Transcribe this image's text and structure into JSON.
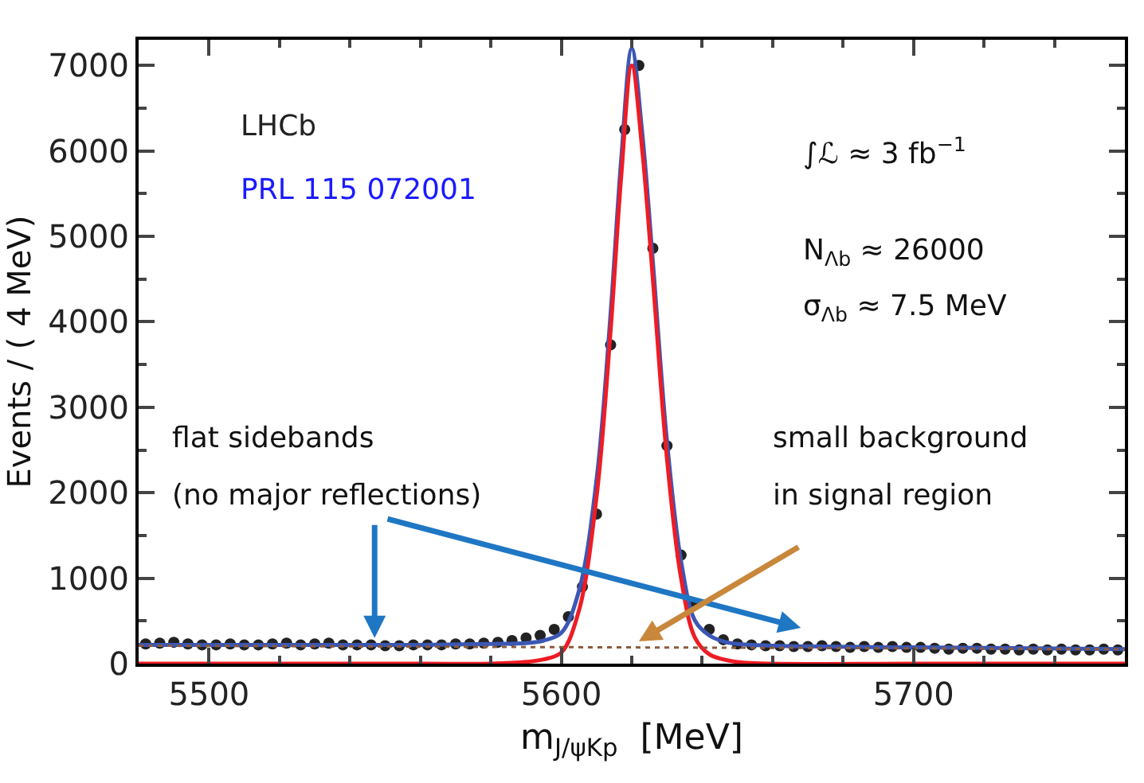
{
  "chart_data": {
    "type": "scatter",
    "xlabel": "m$_{J/ψKp}$  [MeV]",
    "ylabel": "Events / ( 4 MeV)",
    "xlim": [
      5480,
      5760
    ],
    "xticks": [
      5500,
      5600,
      5700
    ],
    "ylim": [
      0,
      7300
    ],
    "yticks": [
      0,
      1000,
      2000,
      3000,
      4000,
      5000,
      6000,
      7000
    ],
    "marker": "circle",
    "series": [
      {
        "color": "#222222",
        "x": [
          5482,
          5486,
          5490,
          5494,
          5498,
          5502,
          5506,
          5510,
          5514,
          5518,
          5522,
          5526,
          5530,
          5534,
          5538,
          5542,
          5546,
          5550,
          5554,
          5558,
          5562,
          5566,
          5570,
          5574,
          5578,
          5582,
          5586,
          5590,
          5594,
          5598,
          5602,
          5606,
          5610,
          5614,
          5618,
          5622,
          5626,
          5630,
          5634,
          5638,
          5642,
          5646,
          5650,
          5654,
          5658,
          5662,
          5666,
          5670,
          5674,
          5678,
          5682,
          5686,
          5690,
          5694,
          5698,
          5702,
          5706,
          5710,
          5714,
          5718,
          5722,
          5726,
          5730,
          5734,
          5738,
          5742,
          5746,
          5750,
          5754,
          5758
        ],
        "values": [
          230,
          240,
          250,
          230,
          220,
          220,
          230,
          220,
          220,
          230,
          240,
          220,
          230,
          240,
          220,
          220,
          220,
          210,
          210,
          220,
          220,
          220,
          230,
          230,
          240,
          250,
          270,
          300,
          330,
          400,
          550,
          900,
          1750,
          3730,
          6250,
          7000,
          4860,
          2550,
          1270,
          700,
          400,
          280,
          230,
          220,
          210,
          210,
          200,
          200,
          210,
          200,
          190,
          200,
          190,
          200,
          190,
          190,
          180,
          170,
          180,
          180,
          170,
          170,
          160,
          170,
          160,
          170,
          160,
          160,
          170,
          160
        ]
      },
      {
        "type": "line",
        "marker": "none",
        "color": "#3b57b5",
        "line_style": "solid",
        "x": [
          5480,
          5520,
          5560,
          5580,
          5590,
          5595,
          5600,
          5605,
          5610,
          5614,
          5617,
          5620,
          5623,
          5626,
          5630,
          5634,
          5638,
          5642,
          5646,
          5650,
          5660,
          5700,
          5760
        ],
        "values": [
          220,
          220,
          220,
          230,
          240,
          270,
          360,
          850,
          2150,
          4100,
          5900,
          7200,
          6200,
          4700,
          2600,
          1200,
          500,
          330,
          260,
          230,
          210,
          190,
          170
        ]
      },
      {
        "type": "line",
        "marker": "none",
        "color": "#ee1c25",
        "line_style": "solid",
        "x": [
          5480,
          5560,
          5580,
          5590,
          5595,
          5600,
          5605,
          5610,
          5614,
          5617,
          5620,
          5623,
          5626,
          5630,
          5634,
          5638,
          5642,
          5646,
          5650,
          5660,
          5700,
          5760
        ],
        "values": [
          0,
          0,
          0,
          20,
          50,
          130,
          620,
          1950,
          3900,
          5700,
          7000,
          6000,
          4500,
          2400,
          1000,
          300,
          110,
          50,
          20,
          0,
          0,
          0
        ]
      },
      {
        "type": "line",
        "marker": "none",
        "color": "#8b5a3c",
        "line_style": "dotted",
        "x": [
          5480,
          5760
        ],
        "values": [
          210,
          170
        ]
      }
    ],
    "annotations": [
      "LHCb",
      "PRL 115 072001",
      "∫ℒ ≈ 3 fb$^{−1}$",
      "N$_{Λb}$ ≈ 26000",
      "σ$_{Λb}$ ≈ 7.5 MeV",
      "flat sidebands",
      {
        "text": "(no major reflections)",
        "x": 5547,
        "y": 300
      },
      "small background",
      {
        "text": "in signal region",
        "x": 5622,
        "y": 260
      }
    ]
  }
}
